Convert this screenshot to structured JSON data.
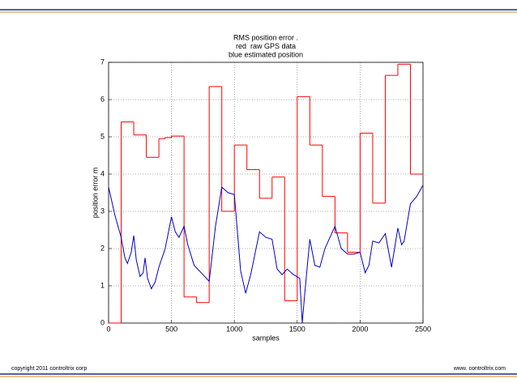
{
  "chart_data": {
    "type": "line",
    "title": [
      "RMS position error .",
      "red  raw GPS data",
      "blue estimated position"
    ],
    "xlabel": "samples",
    "ylabel": "position error m",
    "xlim": [
      0,
      2500
    ],
    "ylim": [
      0,
      7
    ],
    "xticks": [
      0,
      500,
      1000,
      1500,
      2000,
      2500
    ],
    "yticks": [
      0,
      1,
      2,
      3,
      4,
      5,
      6,
      7
    ],
    "grid": true,
    "series": [
      {
        "name": "raw GPS data",
        "color": "#ff0000",
        "step": true,
        "x": [
          0,
          100,
          200,
          300,
          400,
          450,
          500,
          600,
          700,
          800,
          900,
          1000,
          1100,
          1200,
          1300,
          1400,
          1500,
          1600,
          1700,
          1800,
          1900,
          2000,
          2100,
          2200,
          2300,
          2400
        ],
        "values": [
          0,
          5.4,
          5.05,
          4.45,
          4.95,
          4.98,
          5.02,
          0.7,
          0.55,
          6.35,
          3.0,
          4.78,
          4.12,
          3.35,
          3.92,
          0.6,
          6.08,
          4.78,
          3.4,
          2.42,
          1.9,
          5.1,
          3.22,
          6.65,
          6.95,
          4.0
        ]
      },
      {
        "name": "estimated position",
        "color": "#0000cc",
        "x": [
          0,
          50,
          100,
          130,
          150,
          180,
          200,
          220,
          250,
          275,
          290,
          310,
          340,
          370,
          400,
          450,
          500,
          530,
          560,
          600,
          630,
          680,
          750,
          800,
          850,
          900,
          950,
          1000,
          1050,
          1090,
          1130,
          1200,
          1250,
          1300,
          1340,
          1380,
          1420,
          1470,
          1520,
          1540,
          1560,
          1600,
          1640,
          1680,
          1720,
          1800,
          1850,
          1900,
          1950,
          2000,
          2040,
          2070,
          2100,
          2150,
          2200,
          2250,
          2300,
          2330,
          2350,
          2400,
          2450,
          2500
        ],
        "values": [
          3.65,
          2.9,
          2.3,
          1.75,
          1.6,
          1.9,
          2.35,
          1.7,
          1.25,
          1.35,
          1.75,
          1.2,
          0.92,
          1.1,
          1.5,
          2.0,
          2.85,
          2.45,
          2.3,
          2.6,
          2.1,
          1.55,
          1.3,
          1.12,
          2.6,
          3.65,
          3.5,
          3.45,
          1.4,
          0.8,
          1.3,
          2.45,
          2.3,
          2.25,
          1.45,
          1.3,
          1.45,
          1.3,
          1.2,
          0.0,
          0.8,
          2.25,
          1.55,
          1.5,
          2.0,
          2.6,
          2.0,
          1.85,
          1.85,
          1.9,
          1.35,
          1.55,
          2.2,
          2.15,
          2.4,
          1.5,
          2.55,
          2.1,
          2.2,
          3.2,
          3.4,
          3.7
        ]
      }
    ]
  },
  "footer": {
    "left": "copyright 2011 controltrix corp",
    "right": "www. controltrix.com"
  }
}
